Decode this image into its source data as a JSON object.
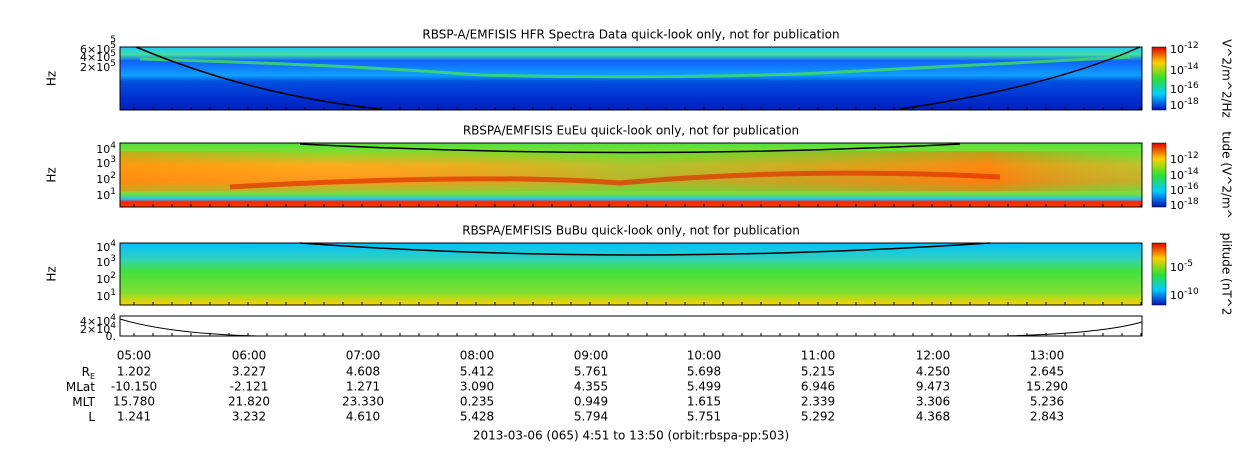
{
  "panels": [
    {
      "title": "RBSP-A/EMFISIS  HFR Spectra Data quick-look only, not for publication",
      "y_label": "Hz",
      "y_ticks": [
        {
          "exponent": "5"
        },
        {
          "mantissa": "6×10",
          "exponent": "5"
        },
        {
          "mantissa": "4×10",
          "exponent": "5"
        },
        {
          "mantissa": "2×10",
          "exponent": "5"
        }
      ],
      "colorbar_ticks": [
        {
          "mantissa": "10",
          "exponent": "-12"
        },
        {
          "mantissa": "10",
          "exponent": "-14"
        },
        {
          "mantissa": "10",
          "exponent": "-16"
        },
        {
          "mantissa": "10",
          "exponent": "-18"
        }
      ],
      "colorbar_label": "V^2/m^2/Hz"
    },
    {
      "title": "RBSPA/EMFISIS  EuEu quick-look only, not for publication",
      "y_label": "Hz",
      "y_ticks": [
        {
          "mantissa": "10",
          "exponent": "4"
        },
        {
          "mantissa": "10",
          "exponent": "3"
        },
        {
          "mantissa": "10",
          "exponent": "2"
        },
        {
          "mantissa": "10",
          "exponent": "1"
        }
      ],
      "colorbar_ticks": [
        {
          "mantissa": "10",
          "exponent": "-12"
        },
        {
          "mantissa": "10",
          "exponent": "-14"
        },
        {
          "mantissa": "10",
          "exponent": "-16"
        },
        {
          "mantissa": "10",
          "exponent": "-18"
        }
      ],
      "colorbar_label": "tude (V^2/m^"
    },
    {
      "title": "RBSPA/EMFISIS  BuBu quick-look only, not for publication",
      "y_label": "Hz",
      "y_ticks": [
        {
          "mantissa": "10",
          "exponent": "4"
        },
        {
          "mantissa": "10",
          "exponent": "3"
        },
        {
          "mantissa": "10",
          "exponent": "2"
        },
        {
          "mantissa": "10",
          "exponent": "1"
        }
      ],
      "colorbar_ticks": [
        {
          "mantissa": "10",
          "exponent": "-5"
        },
        {
          "mantissa": "10",
          "exponent": "-10"
        }
      ],
      "colorbar_label": "plitude (nT^2"
    },
    {
      "y_ticks": [
        {
          "mantissa": "4×10",
          "exponent": "4"
        },
        {
          "mantissa": "2×10",
          "exponent": "4"
        },
        {
          "mantissa": "0."
        }
      ]
    }
  ],
  "time_labels": [
    "05:00",
    "06:00",
    "07:00",
    "08:00",
    "09:00",
    "10:00",
    "11:00",
    "12:00",
    "13:00"
  ],
  "rows": [
    {
      "label": "R",
      "subscript": "E",
      "values": [
        "1.202",
        "3.227",
        "4.608",
        "5.412",
        "5.761",
        "5.698",
        "5.215",
        "4.250",
        "2.645"
      ]
    },
    {
      "label": "MLat",
      "values": [
        "-10.150",
        "-2.121",
        "1.271",
        "3.090",
        "4.355",
        "5.499",
        "6.946",
        "9.473",
        "15.290"
      ]
    },
    {
      "label": "MLT",
      "values": [
        "15.780",
        "21.820",
        "23.330",
        "0.235",
        "0.949",
        "1.615",
        "2.339",
        "3.306",
        "5.236"
      ]
    },
    {
      "label": "L",
      "values": [
        "1.241",
        "3.232",
        "4.610",
        "5.428",
        "5.794",
        "5.751",
        "5.292",
        "4.368",
        "2.843"
      ]
    }
  ],
  "footer": "2013-03-06 (065) 4:51 to 13:50 (orbit:rbspa-pp:503)"
}
